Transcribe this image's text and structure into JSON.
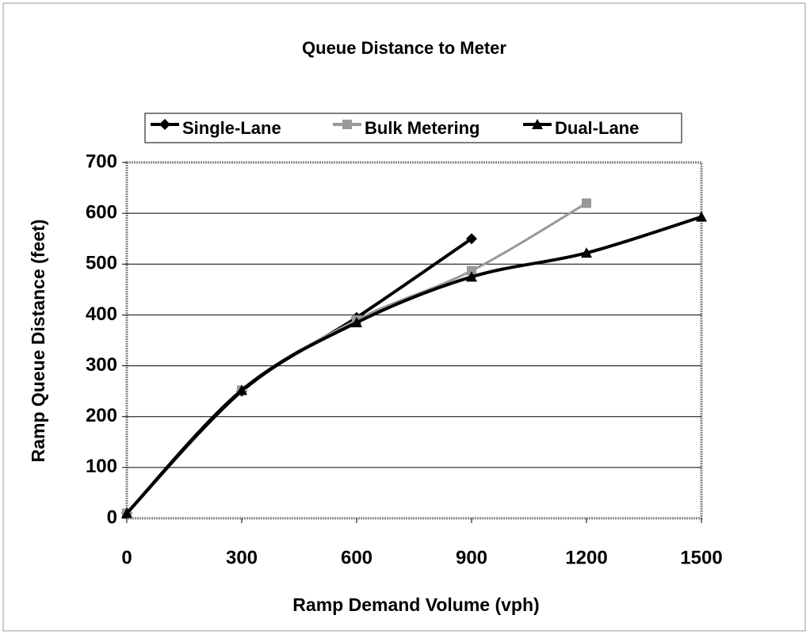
{
  "chart_data": {
    "type": "line",
    "title": "Queue Distance to Meter",
    "x_label": "Ramp Demand Volume (vph)",
    "y_label": "Ramp Queue Distance (feet)",
    "series": [
      {
        "name": "Single-Lane",
        "color": "#000000",
        "marker": "diamond",
        "x": [
          0,
          300,
          600,
          900
        ],
        "values": [
          10,
          250,
          395,
          550
        ]
      },
      {
        "name": "Bulk Metering",
        "color": "#999999",
        "marker": "square",
        "x": [
          0,
          300,
          600,
          900,
          1200
        ],
        "values": [
          10,
          252,
          390,
          487,
          620
        ]
      },
      {
        "name": "Dual-Lane",
        "color": "#000000",
        "marker": "triangle",
        "x": [
          0,
          300,
          600,
          900,
          1200,
          1500
        ],
        "values": [
          10,
          252,
          385,
          475,
          522,
          593
        ]
      }
    ],
    "xlim": [
      0,
      1500
    ],
    "xticks": [
      0,
      300,
      600,
      900,
      1200,
      1500
    ],
    "ylim": [
      0,
      700
    ],
    "yticks": [
      0,
      100,
      200,
      300,
      400,
      500,
      600,
      700
    ],
    "grid": true,
    "legend": "top"
  }
}
